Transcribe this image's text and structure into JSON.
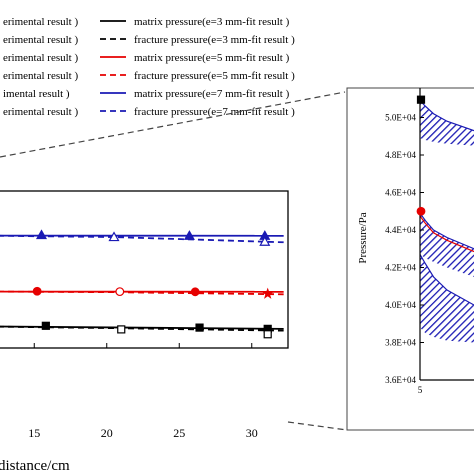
{
  "legend": {
    "entries": [
      {
        "left": "erimental result )",
        "right": "matrix pressure(e=3 mm-fit result )",
        "color": "#000000",
        "dash": false
      },
      {
        "left": "erimental result )",
        "right": "fracture pressure(e=3 mm-fit result )",
        "color": "#000000",
        "dash": true
      },
      {
        "left": "erimental result )",
        "right": "matrix pressure(e=5 mm-fit result )",
        "color": "#e60000",
        "dash": false
      },
      {
        "left": "erimental result )",
        "right": "fracture pressure(e=5 mm-fit result )",
        "color": "#e60000",
        "dash": true
      },
      {
        "left": "imental result )",
        "right": "matrix pressure(e=7 mm-fit result )",
        "color": "#1a1ab4",
        "dash": false
      },
      {
        "left": "erimental result )",
        "right": "fracture pressure(e=7 mm-fit result )",
        "color": "#1a1ab4",
        "dash": true
      }
    ]
  },
  "colors": {
    "e3": "#000000",
    "e5": "#e60000",
    "e7": "#1a1ab4"
  },
  "chart_data": [
    {
      "type": "line",
      "xlabel": "distance/cm",
      "xticks": [
        "15",
        "20",
        "25",
        "30"
      ],
      "xlim": [
        12.5,
        32.5
      ],
      "series": [
        {
          "name": "matrix pressure(e=3 mm-fit result )",
          "color": "#000000",
          "dash": false,
          "x": [
            12.5,
            32.2
          ],
          "y": [
            0.14,
            0.27
          ]
        },
        {
          "name": "fracture pressure(e=3 mm-fit result )",
          "color": "#000000",
          "dash": true,
          "x": [
            12.5,
            20.5,
            32.2
          ],
          "y": [
            0.15,
            0.23,
            0.37
          ]
        },
        {
          "name": "matrix pressure(e=5 mm-fit result )",
          "color": "#e60000",
          "dash": false,
          "x": [
            12.5,
            32.2
          ],
          "y": [
            0.09,
            0.1
          ]
        },
        {
          "name": "fracture pressure(e=5 mm-fit result )",
          "color": "#e60000",
          "dash": true,
          "x": [
            12.5,
            20.5,
            32.2
          ],
          "y": [
            0.09,
            0.12,
            0.24
          ]
        },
        {
          "name": "matrix pressure(e=7 mm-fit result )",
          "color": "#1a1ab4",
          "dash": false,
          "x": [
            12.5,
            32.2
          ],
          "y": [
            0.09,
            0.1
          ]
        },
        {
          "name": "fracture pressure(e=7 mm-fit result )",
          "color": "#1a1ab4",
          "dash": true,
          "x": [
            12.5,
            20.5,
            32.2
          ],
          "y": [
            0.1,
            0.17,
            0.46
          ]
        }
      ],
      "markers": [
        {
          "group": "e7",
          "shape": "triangle",
          "filled": true,
          "x": [
            15.5,
            25.7,
            30.9
          ],
          "y": [
            0.06,
            0.1,
            0.1
          ]
        },
        {
          "group": "e7",
          "shape": "triangle",
          "filled": false,
          "x": [
            20.5,
            30.9
          ],
          "y": [
            0.17,
            0.43
          ]
        },
        {
          "group": "e5",
          "shape": "circle",
          "filled": true,
          "x": [
            15.2,
            26.1
          ],
          "y": [
            0.07,
            0.1
          ]
        },
        {
          "group": "e5",
          "shape": "circle",
          "filled": false,
          "x": [
            20.9
          ],
          "y": [
            0.09
          ]
        },
        {
          "group": "e5",
          "shape": "star",
          "filled": true,
          "x": [
            31.1
          ],
          "y": [
            0.21
          ]
        },
        {
          "group": "e3",
          "shape": "square",
          "filled": true,
          "x": [
            15.8,
            26.4,
            31.1
          ],
          "y": [
            0.1,
            0.2,
            0.27
          ]
        },
        {
          "group": "e3",
          "shape": "square",
          "filled": false,
          "x": [
            21.0,
            31.1
          ],
          "y": [
            0.3,
            0.57
          ]
        }
      ]
    },
    {
      "type": "area",
      "ylabel": "Pressure/Pa",
      "yticks": [
        "3.6E+04",
        "3.8E+04",
        "4.0E+04",
        "4.2E+04",
        "4.4E+04",
        "4.6E+04",
        "4.8E+04",
        "5.0E+04"
      ],
      "ylim": [
        36000,
        51200
      ],
      "xticks": [
        "5"
      ],
      "bands": [
        {
          "color": "#1a1ab4",
          "x": [
            5.0,
            5.2,
            5.5,
            6.0,
            7.0
          ],
          "upper": [
            50900,
            50600,
            50200,
            49800,
            49300
          ],
          "lower": [
            48900,
            48800,
            48700,
            48600,
            48500
          ]
        },
        {
          "color": "#1a1ab4",
          "x": [
            5.0,
            5.2,
            5.5,
            6.0,
            7.0
          ],
          "upper": [
            44900,
            44500,
            44000,
            43600,
            43000
          ],
          "lower": [
            42700,
            42500,
            42300,
            42000,
            41500
          ]
        },
        {
          "color": "#1a1ab4",
          "x": [
            5.0,
            5.2,
            5.5,
            6.0,
            7.0
          ],
          "upper": [
            42700,
            42200,
            41500,
            40800,
            40000
          ],
          "lower": [
            38800,
            38500,
            38300,
            38100,
            38000
          ]
        }
      ],
      "markers": [
        {
          "shape": "square",
          "color": "#000000",
          "x": 5.0,
          "y": 50950
        },
        {
          "shape": "circle",
          "color": "#e60000",
          "x": 5.0,
          "y": 45000
        }
      ]
    }
  ]
}
